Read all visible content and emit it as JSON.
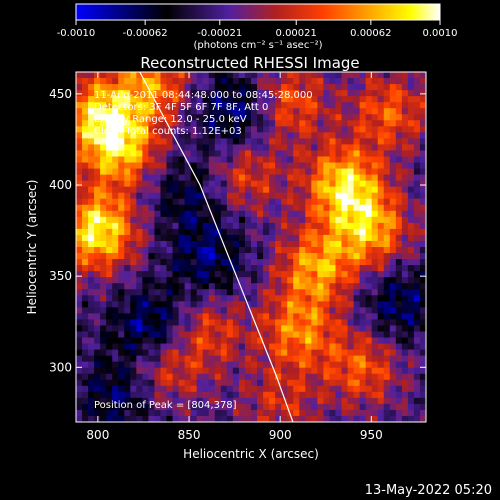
{
  "chart_data": {
    "type": "heatmap",
    "title": "Reconstructed RHESSI Image",
    "xlabel": "Heliocentric X (arcsec)",
    "ylabel": "Heliocentric Y (arcsec)",
    "xlim": [
      788,
      980
    ],
    "ylim": [
      270,
      462
    ],
    "x_ticks": [
      800,
      850,
      900,
      950
    ],
    "y_ticks": [
      300,
      350,
      400,
      450
    ],
    "colorbar": {
      "range": [
        -0.001,
        0.001
      ],
      "tick_values": [
        -0.001,
        -0.00062,
        -0.00021,
        0.00021,
        0.00062,
        0.001
      ],
      "tick_labels": [
        "-0.0010",
        "-0.00062",
        "-0.00021",
        "0.00021",
        "0.00062",
        "0.0010"
      ],
      "units": "(photons cm⁻² s⁻¹ asec⁻²)",
      "colors": [
        "#0000ff",
        "#000000",
        "#5020a0",
        "#b02020",
        "#ff4000",
        "#ffa000",
        "#ffff00",
        "#ffffff"
      ]
    },
    "annotations": [
      "11-Aug-2011 08:44:48.000 to 08:45:28.000",
      "Detectors: 3F 4F 5F 6F 7F 8F, Att 0",
      "Energy Range: 12.0 - 25.0 keV",
      "Clean    Total counts: 1.12E+03"
    ],
    "peak_label": "Position of Peak = [804,378]",
    "limb_curve": {
      "x": [
        823,
        840,
        856,
        868,
        878,
        888,
        898,
        907
      ],
      "y": [
        462,
        430,
        400,
        370,
        345,
        320,
        295,
        270
      ]
    },
    "hotspots": [
      {
        "x": 800,
        "y": 375,
        "v": 0.0011
      },
      {
        "x": 812,
        "y": 420,
        "v": 0.0009
      },
      {
        "x": 800,
        "y": 440,
        "v": 0.0008
      },
      {
        "x": 830,
        "y": 455,
        "v": 0.0007
      },
      {
        "x": 905,
        "y": 445,
        "v": 0.0006
      },
      {
        "x": 935,
        "y": 400,
        "v": 0.001
      },
      {
        "x": 950,
        "y": 375,
        "v": 0.0008
      },
      {
        "x": 920,
        "y": 355,
        "v": 0.0008
      },
      {
        "x": 910,
        "y": 320,
        "v": 0.0007
      },
      {
        "x": 945,
        "y": 300,
        "v": 0.0006
      },
      {
        "x": 880,
        "y": 405,
        "v": 0.0005
      },
      {
        "x": 860,
        "y": 320,
        "v": 0.0005
      },
      {
        "x": 835,
        "y": 300,
        "v": 0.0006
      },
      {
        "x": 960,
        "y": 440,
        "v": 0.0006
      },
      {
        "x": 900,
        "y": 280,
        "v": 0.0004
      }
    ],
    "coldspots": [
      {
        "x": 830,
        "y": 320,
        "v": -0.0007
      },
      {
        "x": 860,
        "y": 360,
        "v": -0.0005
      },
      {
        "x": 875,
        "y": 440,
        "v": -0.0006
      },
      {
        "x": 812,
        "y": 285,
        "v": -0.0005
      },
      {
        "x": 965,
        "y": 335,
        "v": -0.0005
      },
      {
        "x": 850,
        "y": 395,
        "v": -0.0004
      }
    ]
  },
  "footer_timestamp": "13-May-2022 05:20"
}
